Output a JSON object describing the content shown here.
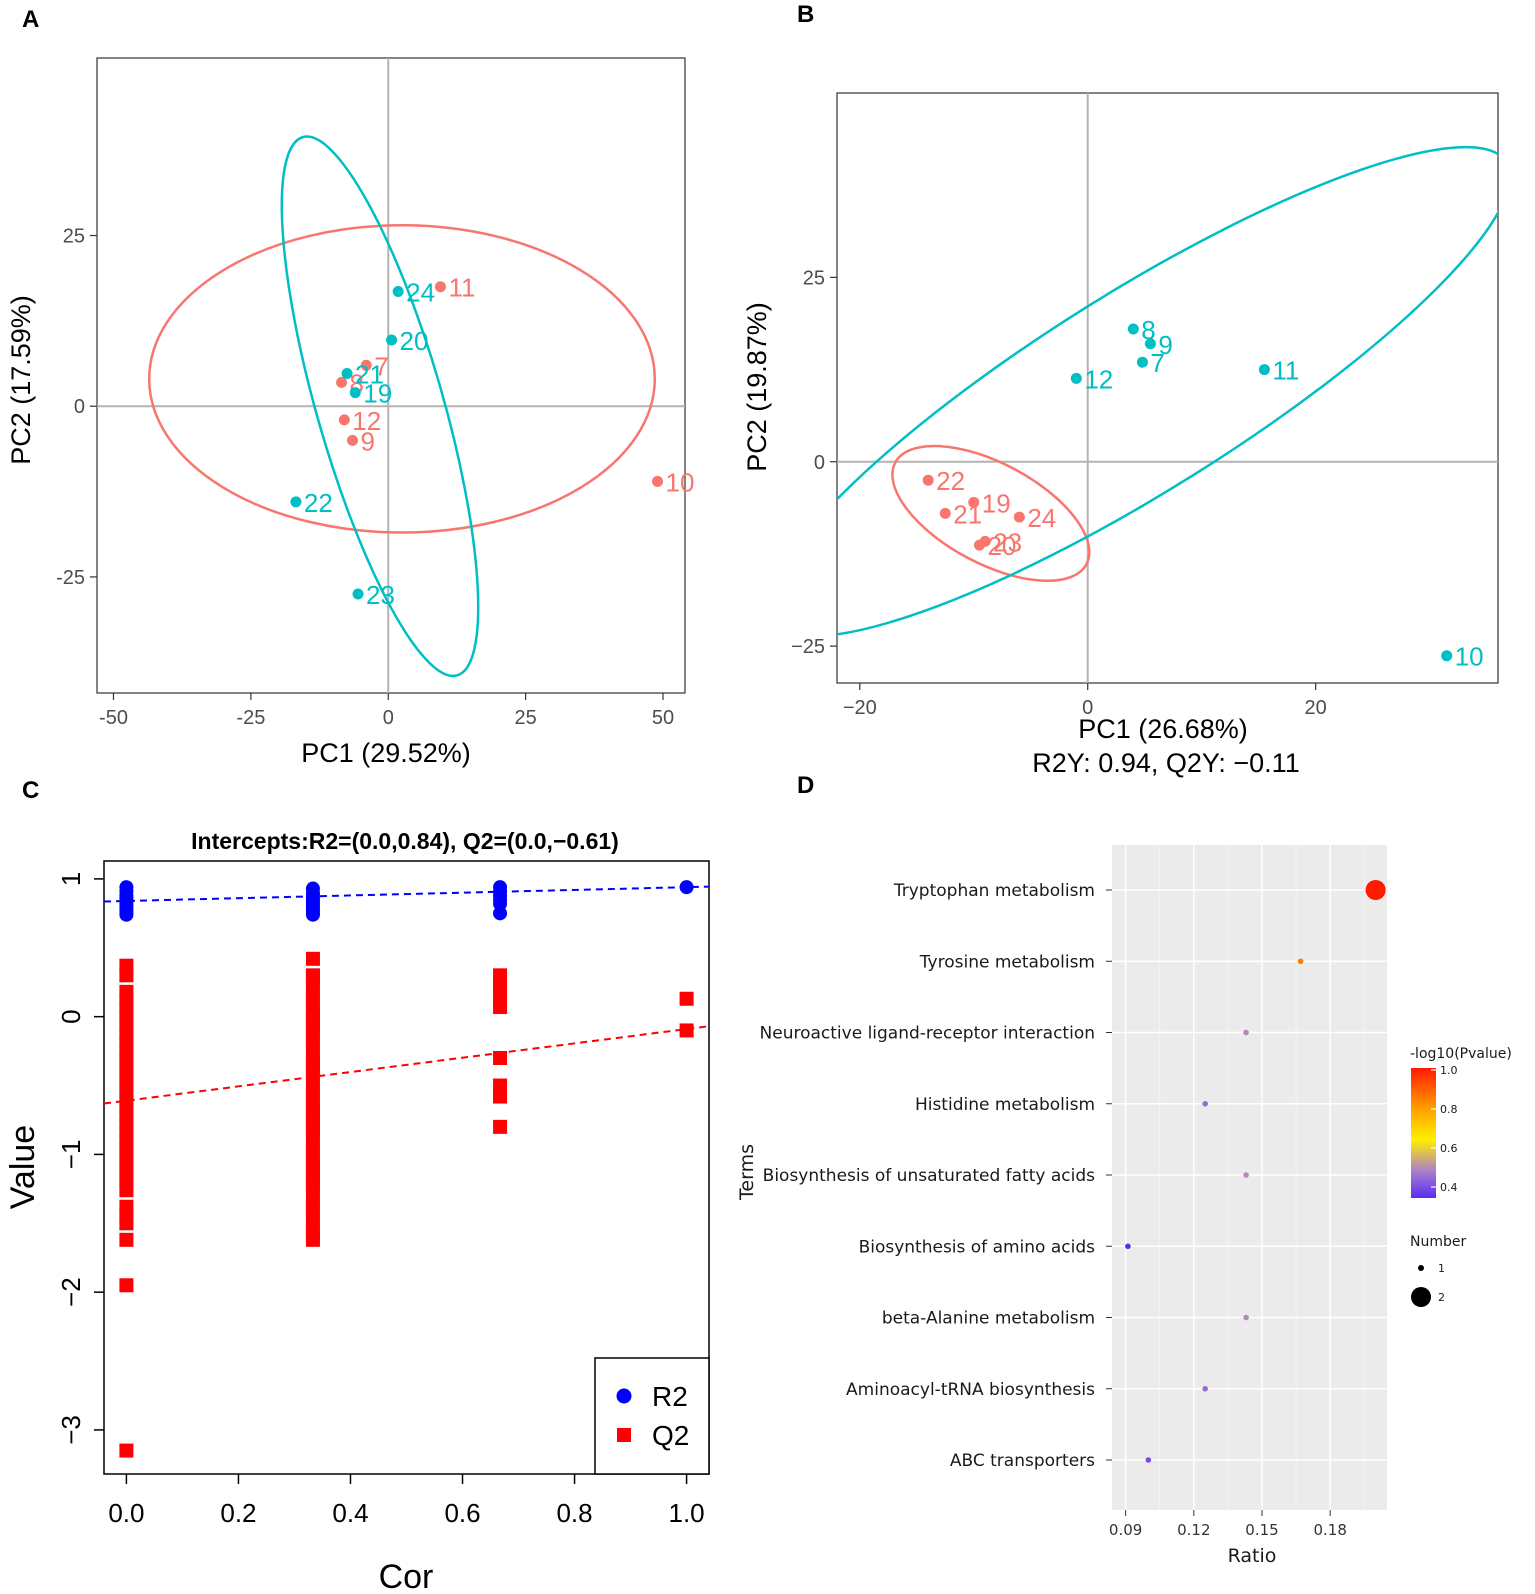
{
  "colors": {
    "group1": "#F8766D",
    "group2": "#00BFC4",
    "r2": "#0000FF",
    "q2": "#FF0000"
  },
  "chart_data": [
    {
      "panel": "A",
      "type": "scatter",
      "xlabel": "PC1 (29.52%)",
      "ylabel": "PC2 (17.59%)",
      "xlim": [
        -53,
        54
      ],
      "ylim": [
        -42,
        51
      ],
      "xticks": [
        -50,
        -25,
        0,
        25,
        50
      ],
      "yticks": [
        -25,
        0,
        25
      ],
      "ytick_labels": [
        "-25",
        "0",
        "25"
      ],
      "xtick_labels": [
        "-50",
        "-25",
        "0",
        "25",
        "50"
      ],
      "series": [
        {
          "points": [
            {
              "x": 9.5,
              "y": 17.5,
              "label": "11"
            },
            {
              "x": -4,
              "y": 6,
              "label": "7"
            },
            {
              "x": -8.5,
              "y": 3.5,
              "label": "8"
            },
            {
              "x": -8,
              "y": -2,
              "label": "12"
            },
            {
              "x": -6.5,
              "y": -5,
              "label": "9"
            },
            {
              "x": 49,
              "y": -11,
              "label": "10"
            }
          ],
          "ellipse": {
            "cx": 2.5,
            "cy": 4,
            "rx": 46,
            "ry": 22.5,
            "angle_deg": 0
          }
        },
        {
          "points": [
            {
              "x": 1.8,
              "y": 16.8,
              "label": "24"
            },
            {
              "x": 0.6,
              "y": 9.7,
              "label": "20"
            },
            {
              "x": -7.5,
              "y": 4.8,
              "label": "21"
            },
            {
              "x": -6,
              "y": 2,
              "label": "19"
            },
            {
              "x": -16.8,
              "y": -14,
              "label": "22"
            },
            {
              "x": -5.5,
              "y": -27.5,
              "label": "23"
            }
          ],
          "ellipse": {
            "cx": -1.5,
            "cy": 0,
            "rx": 11.5,
            "ry": 41,
            "angle_deg": 16
          }
        }
      ]
    },
    {
      "panel": "B",
      "type": "scatter",
      "xlabel": "PC1 (26.68%)",
      "subtitle": "R2Y: 0.94, Q2Y: −0.11",
      "ylabel": "PC2 (19.87%)",
      "xlim": [
        -22,
        36
      ],
      "ylim": [
        -30,
        50
      ],
      "xticks": [
        -20,
        0,
        20
      ],
      "yticks": [
        -25,
        0,
        25
      ],
      "xtick_labels": [
        "−20",
        "0",
        "20"
      ],
      "ytick_labels": [
        "−25",
        "0",
        "25"
      ],
      "series": [
        {
          "points": [
            {
              "x": -14,
              "y": -2.5,
              "label": "22"
            },
            {
              "x": -12.5,
              "y": -7,
              "label": "21"
            },
            {
              "x": -10,
              "y": -5.5,
              "label": "19"
            },
            {
              "x": -6,
              "y": -7.5,
              "label": "24"
            },
            {
              "x": -9,
              "y": -10.8,
              "label": "23"
            },
            {
              "x": -9.5,
              "y": -11.3,
              "label": "20"
            }
          ],
          "ellipse": {
            "cx": -8.5,
            "cy": -7,
            "rx": 9.5,
            "ry": 6.8,
            "angle_deg": -28
          }
        },
        {
          "points": [
            {
              "x": 4,
              "y": 18,
              "label": "8"
            },
            {
              "x": 5.5,
              "y": 16,
              "label": "9"
            },
            {
              "x": 4.8,
              "y": 13.5,
              "label": "7"
            },
            {
              "x": -1,
              "y": 11.3,
              "label": "12"
            },
            {
              "x": 15.5,
              "y": 12.5,
              "label": "11"
            },
            {
              "x": 31.5,
              "y": -26.3,
              "label": "10"
            }
          ],
          "ellipse": {
            "cx": 4.5,
            "cy": 9.5,
            "rx": 38,
            "ry": 13.5,
            "angle_deg": 32
          }
        }
      ]
    },
    {
      "panel": "C",
      "type": "scatter",
      "title": "Intercepts:R2=(0.0,0.84), Q2=(0.0,−0.61)",
      "xlabel": "Cor",
      "ylabel": "Value",
      "xlim": [
        -0.04,
        1.04
      ],
      "ylim": [
        -3.32,
        1.13
      ],
      "xticks": [
        0.0,
        0.2,
        0.4,
        0.6,
        0.8,
        1.0
      ],
      "xtick_labels": [
        "0.0",
        "0.2",
        "0.4",
        "0.6",
        "0.8",
        "1.0"
      ],
      "yticks": [
        -3,
        -2,
        -1,
        0,
        1
      ],
      "ytick_labels": [
        "−3",
        "−2",
        "−1",
        "0",
        "1"
      ],
      "legend": {
        "position": "bottom-right",
        "entries": [
          "R2",
          "Q2"
        ]
      },
      "series": [
        {
          "name": "R2",
          "marker": "circle",
          "x": [
            0,
            0,
            0,
            0,
            0,
            0,
            0,
            0,
            0,
            0,
            0.333,
            0.333,
            0.333,
            0.333,
            0.333,
            0.333,
            0.333,
            0.333,
            0.333,
            0.333,
            0.667,
            0.667,
            0.667,
            0.667,
            0.667,
            0.667,
            1.0
          ],
          "y": [
            0.94,
            0.91,
            0.88,
            0.86,
            0.84,
            0.82,
            0.8,
            0.78,
            0.76,
            0.74,
            0.93,
            0.9,
            0.88,
            0.86,
            0.84,
            0.82,
            0.8,
            0.78,
            0.76,
            0.74,
            0.94,
            0.91,
            0.88,
            0.85,
            0.82,
            0.75,
            0.94
          ],
          "fit": {
            "intercept": 0.84,
            "slope": 0.1
          }
        },
        {
          "name": "Q2",
          "marker": "square",
          "x": [
            0,
            0,
            0,
            0,
            0,
            0,
            0,
            0,
            0,
            0,
            0,
            0,
            0,
            0,
            0,
            0,
            0,
            0,
            0,
            0,
            0,
            0,
            0,
            0,
            0,
            0,
            0,
            0,
            0,
            0,
            0,
            0,
            0,
            0.333,
            0.333,
            0.333,
            0.333,
            0.333,
            0.333,
            0.333,
            0.333,
            0.333,
            0.333,
            0.333,
            0.333,
            0.333,
            0.333,
            0.333,
            0.333,
            0.333,
            0.333,
            0.333,
            0.333,
            0.333,
            0.333,
            0.333,
            0.333,
            0.333,
            0.333,
            0.333,
            0.333,
            0.333,
            0.333,
            0.333,
            0.333,
            0.333,
            0.333,
            0.667,
            0.667,
            0.667,
            0.667,
            0.667,
            0.667,
            0.667,
            0.667,
            1.0,
            1.0
          ],
          "y": [
            0.37,
            0.18,
            0.12,
            0.06,
            0.0,
            -0.06,
            -0.12,
            -0.18,
            -0.24,
            -0.3,
            -0.36,
            -0.42,
            -0.48,
            -0.54,
            -0.6,
            -0.66,
            -0.72,
            -0.78,
            -0.84,
            -0.9,
            -0.96,
            -1.02,
            -1.08,
            -1.14,
            -1.2,
            -1.26,
            -1.38,
            -1.44,
            -1.5,
            -1.62,
            -1.95,
            -3.15,
            0.3,
            0.42,
            0.28,
            0.2,
            0.12,
            0.05,
            -0.02,
            -0.1,
            -0.18,
            -0.26,
            -0.34,
            -0.42,
            -0.5,
            -0.58,
            -0.66,
            -0.74,
            -0.82,
            -0.9,
            -0.98,
            -1.06,
            -1.14,
            -1.22,
            -1.32,
            -1.4,
            -1.48,
            -1.56,
            -1.62,
            0.0,
            -0.7,
            -0.36,
            -0.06,
            0.3,
            -0.78,
            -1.2,
            -1.1,
            0.3,
            0.22,
            0.15,
            0.07,
            -0.3,
            -0.5,
            -0.58,
            -0.8,
            0.13,
            -0.1
          ],
          "fit": {
            "intercept": -0.61,
            "slope": 0.52
          }
        }
      ]
    },
    {
      "panel": "D",
      "type": "scatter",
      "xlabel": "Ratio",
      "ylabel": "Terms",
      "xlim": [
        0.084,
        0.205
      ],
      "xticks": [
        0.09,
        0.12,
        0.15,
        0.18
      ],
      "xtick_labels": [
        "0.09",
        "0.12",
        "0.15",
        "0.18"
      ],
      "color_legend": {
        "title": "-log10(Pvalue)",
        "ticks": [
          "1.0",
          "0.8",
          "0.6",
          "0.4"
        ],
        "range": [
          0.35,
          1.0
        ]
      },
      "size_legend": {
        "title": "Number",
        "entries": [
          "1",
          "2"
        ]
      },
      "terms": [
        {
          "label": "Tryptophan metabolism",
          "ratio": 0.2,
          "pvalue_log": 1.0,
          "number": 2
        },
        {
          "label": "Tyrosine metabolism",
          "ratio": 0.167,
          "pvalue_log": 0.85,
          "number": 1
        },
        {
          "label": "Neuroactive ligand-receptor interaction",
          "ratio": 0.143,
          "pvalue_log": 0.5,
          "number": 1
        },
        {
          "label": "Histidine metabolism",
          "ratio": 0.125,
          "pvalue_log": 0.45,
          "number": 1
        },
        {
          "label": "Biosynthesis of unsaturated fatty acids",
          "ratio": 0.143,
          "pvalue_log": 0.5,
          "number": 1
        },
        {
          "label": "Biosynthesis of amino acids",
          "ratio": 0.091,
          "pvalue_log": 0.35,
          "number": 1
        },
        {
          "label": "beta-Alanine metabolism",
          "ratio": 0.143,
          "pvalue_log": 0.5,
          "number": 1
        },
        {
          "label": "Aminoacyl-tRNA biosynthesis",
          "ratio": 0.125,
          "pvalue_log": 0.45,
          "number": 1
        },
        {
          "label": "ABC transporters",
          "ratio": 0.1,
          "pvalue_log": 0.4,
          "number": 1
        }
      ]
    }
  ],
  "panels": [
    "A",
    "B",
    "C",
    "D"
  ]
}
